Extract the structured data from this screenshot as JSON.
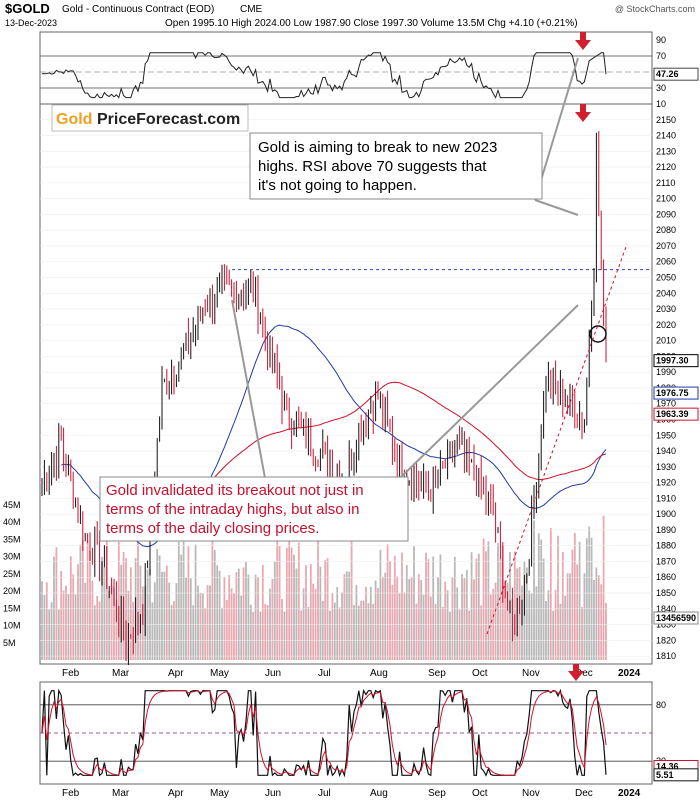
{
  "header": {
    "symbol": "$GOLD",
    "name": "Gold - Continuous Contract (EOD)",
    "exchange": "CME",
    "date": "13-Dec-2023",
    "ohlc": "Open 1995.10  High 2024.00  Low 1987.90  Close 1997.30  Volume 13.5M  Chg +4.10 (+0.21%)",
    "watermark": "@ StockCharts.com"
  },
  "logo": {
    "part1": "Gold",
    "part2": "PriceForecast.com"
  },
  "colors": {
    "up": "#111111",
    "down": "#c8102e",
    "ma50": "#1f3aa8",
    "ma200": "#d3102a",
    "annotation": "#c8102e",
    "volume": "#b8b8b8",
    "volume_down": "#e8a8b0",
    "arrow": "#d02030"
  },
  "annotations": {
    "top": [
      "Gold is aiming to break to new 2023",
      "highs. RSI above 70 suggests that",
      "it's not going to happen."
    ],
    "bottom": [
      "Gold invalidated its breakout not just in",
      "terms of the intraday highs, but also in",
      "terms of the daily closing prices."
    ]
  },
  "x_labels": [
    "Feb",
    "Mar",
    "Apr",
    "May",
    "Jun",
    "Jul",
    "Aug",
    "Sep",
    "Oct",
    "Nov",
    "Dec",
    "2024"
  ],
  "chart_data": [
    {
      "type": "line",
      "panel": "RSI",
      "ylim": [
        10,
        100
      ],
      "tick_labels": [
        "90",
        "70",
        "50",
        "30",
        "10"
      ],
      "reference_lines": [
        70,
        30
      ],
      "last_value": 47.26,
      "last_value_label": "47.26",
      "grid": true
    },
    {
      "type": "candlestick",
      "panel": "price",
      "ylim": [
        1805,
        2160
      ],
      "tick_labels": [
        "2150",
        "2140",
        "2130",
        "2120",
        "2110",
        "2100",
        "2090",
        "2080",
        "2070",
        "2060",
        "2050",
        "2040",
        "2030",
        "2020",
        "2010",
        "2000",
        "1990",
        "1980",
        "1970",
        "1960",
        "1950",
        "1940",
        "1930",
        "1920",
        "1910",
        "1900",
        "1890",
        "1880",
        "1870",
        "1860",
        "1850",
        "1840",
        "1830",
        "1820",
        "1810"
      ],
      "ohlc_anchors": [
        {
          "month": "Jan",
          "close": 1920
        },
        {
          "month": "Feb",
          "close": 1875
        },
        {
          "month": "Mar",
          "close": 1835
        },
        {
          "month": "Apr",
          "close": 2015
        },
        {
          "month": "May",
          "close": 2020
        },
        {
          "month": "Jun",
          "close": 1935
        },
        {
          "month": "Jul",
          "close": 1960
        },
        {
          "month": "Aug",
          "close": 1945
        },
        {
          "month": "Sep",
          "close": 1925
        },
        {
          "month": "Oct",
          "close": 1835
        },
        {
          "month": "Nov",
          "close": 2005
        },
        {
          "month": "Dec",
          "close": 1997.3
        }
      ],
      "last_close": 1997.3,
      "last_close_label": "1997.30",
      "ma50_label": "1976.75",
      "ma200_label": "1963.39",
      "resistance": 2055,
      "volume_axis_labels": [
        "45M",
        "40M",
        "35M",
        "30M",
        "25M",
        "20M",
        "15M",
        "10M",
        "5M"
      ],
      "volume_last_label": "13456590"
    },
    {
      "type": "line",
      "panel": "Stochastic",
      "ylim": [
        0,
        100
      ],
      "tick_labels": [
        "80",
        "20"
      ],
      "reference_lines": [
        80,
        50,
        20
      ],
      "last_values": [
        14.36,
        5.51
      ],
      "last_value_labels": [
        "14.36",
        "5.51"
      ]
    }
  ]
}
